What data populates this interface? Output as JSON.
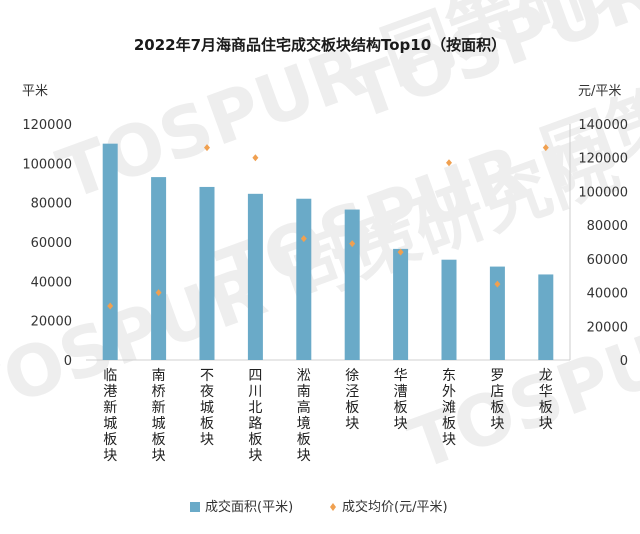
{
  "chart_data": {
    "type": "bar",
    "title": "2022年7月海商品住宅成交板块结构Top10（按面积）",
    "watermark": "TOSPUR 同策研究院",
    "categories": [
      "临港新城板块",
      "南桥新城板块",
      "不夜城板块",
      "四川北路板块",
      "淞南高境板块",
      "徐泾板块",
      "华漕板块",
      "东外滩板块",
      "罗店板块",
      "龙华板块"
    ],
    "series": [
      {
        "name": "成交面积(平米)",
        "type": "bar",
        "axis": "left",
        "color": "#6aaac8",
        "values": [
          110000,
          93000,
          88000,
          84500,
          82000,
          76500,
          56500,
          51000,
          47500,
          43500
        ]
      },
      {
        "name": "成交均价(元/平米)",
        "type": "scatter",
        "axis": "right",
        "color": "#f0a050",
        "values": [
          32000,
          40000,
          126000,
          120000,
          72000,
          69000,
          64000,
          117000,
          45000,
          126000
        ]
      }
    ],
    "yleft": {
      "label": "平米",
      "min": 0,
      "max": 120000,
      "step": 20000
    },
    "yright": {
      "label": "元/平米",
      "min": 0,
      "max": 140000,
      "step": 20000
    },
    "legend_position": "bottom",
    "grid": false
  }
}
